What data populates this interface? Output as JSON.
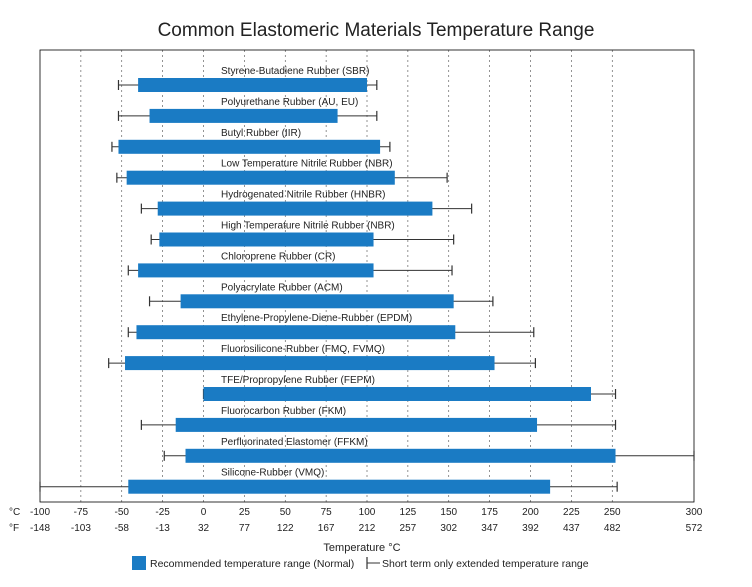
{
  "chart_data": {
    "type": "bar",
    "title": "Common Elastomeric Materials Temperature Range",
    "xlabel": "Temperature °C",
    "axis_units": [
      "°C",
      "°F"
    ],
    "x_ticks_c": [
      -100,
      -75,
      -50,
      -25,
      0,
      25,
      50,
      75,
      100,
      125,
      150,
      175,
      200,
      225,
      250,
      300
    ],
    "x_ticks_f": [
      -148,
      -103,
      -58,
      -13,
      32,
      77,
      122,
      167,
      212,
      257,
      302,
      347,
      392,
      437,
      482,
      572
    ],
    "xlim_c": [
      -100,
      300
    ],
    "grid": true,
    "legend": {
      "position": "bottom",
      "recommended_label": "Recommended temperature range (Normal)",
      "extended_label": "Short term only extended temperature range"
    },
    "colors": {
      "bar": "#1a7bc4",
      "whisker": "#333333",
      "grid": "#000000"
    },
    "series": [
      {
        "name": "Styrene-Butadiene Rubber (SBR)",
        "normal": [
          -40,
          100
        ],
        "extended": [
          -52,
          106
        ]
      },
      {
        "name": "Polyurethane Rubber (AU, EU)",
        "normal": [
          -33,
          82
        ],
        "extended": [
          -52,
          106
        ]
      },
      {
        "name": "Butyl Rubber (IIR)",
        "normal": [
          -52,
          108
        ],
        "extended": [
          -56,
          114
        ]
      },
      {
        "name": "Low Temperature Nitrile Rubber (NBR)",
        "normal": [
          -47,
          117
        ],
        "extended": [
          -53,
          149
        ]
      },
      {
        "name": "Hydrogenated Nitrile Rubber (HNBR)",
        "normal": [
          -28,
          140
        ],
        "extended": [
          -38,
          164
        ]
      },
      {
        "name": "High Temperature Nitrile Rubber (NBR)",
        "normal": [
          -27,
          104
        ],
        "extended": [
          -32,
          153
        ]
      },
      {
        "name": "Chloroprene Rubber (CR)",
        "normal": [
          -40,
          104
        ],
        "extended": [
          -46,
          152
        ]
      },
      {
        "name": "Polyacrylate Rubber (ACM)",
        "normal": [
          -14,
          153
        ],
        "extended": [
          -33,
          177
        ]
      },
      {
        "name": "Ethylene-Propylene-Diene-Rubber (EPDM)",
        "normal": [
          -41,
          154
        ],
        "extended": [
          -46,
          202
        ]
      },
      {
        "name": "Fluorosilicone-Rubber (FMQ, FVMQ)",
        "normal": [
          -48,
          178
        ],
        "extended": [
          -58,
          203
        ]
      },
      {
        "name": "TFE/Propropylene Rubber (FEPM)",
        "normal": [
          0,
          237
        ],
        "extended": [
          0,
          252
        ]
      },
      {
        "name": "Fluorocarbon Rubber (FKM)",
        "normal": [
          -17,
          204
        ],
        "extended": [
          -38,
          252
        ]
      },
      {
        "name": "Perfluorinated Elastomer (FFKM)",
        "normal": [
          -11,
          252
        ],
        "extended": [
          -24,
          300
        ]
      },
      {
        "name": "Silicone-Rubber (VMQ)",
        "normal": [
          -46,
          212
        ],
        "extended": [
          -100,
          253
        ]
      }
    ]
  }
}
